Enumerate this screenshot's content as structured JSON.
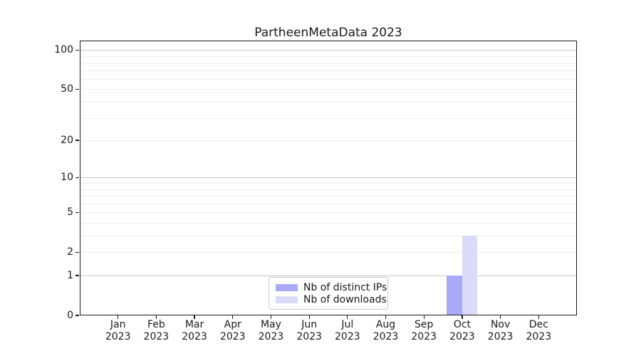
{
  "title": "PartheenMetaData 2023",
  "chart_data": {
    "type": "bar",
    "title": "PartheenMetaData 2023",
    "categories": [
      "Jan",
      "Feb",
      "Mar",
      "Apr",
      "May",
      "Jun",
      "Jul",
      "Aug",
      "Sep",
      "Oct",
      "Nov",
      "Dec"
    ],
    "category_sublabel": "2023",
    "series": [
      {
        "name": "Nb of distinct IPs",
        "color": "#a9a9f6",
        "values": [
          0,
          0,
          0,
          0,
          0,
          0,
          0,
          0,
          0,
          1,
          0,
          0
        ]
      },
      {
        "name": "Nb of downloads",
        "color": "#dbdbf9",
        "values": [
          0,
          0,
          0,
          0,
          0,
          0,
          0,
          0,
          0,
          3,
          0,
          0
        ]
      }
    ],
    "y_scale": "log1p",
    "ylim": [
      0,
      118
    ],
    "y_tick_values": [
      0,
      1,
      2,
      5,
      10,
      20,
      50,
      100
    ],
    "y_tick_labels": [
      "0",
      "1",
      "2",
      "5",
      "10",
      "20",
      "50",
      "100"
    ],
    "y_major_gridlines": [
      1,
      10,
      100
    ],
    "y_minor_gridlines": [
      2,
      3,
      4,
      5,
      6,
      7,
      8,
      9,
      20,
      30,
      40,
      50,
      60,
      70,
      80,
      90
    ],
    "grid": true,
    "legend_position": "lower center",
    "colors": {
      "major_grid": "#c8c8c8",
      "minor_grid": "#ededed",
      "spine": "#1a1a1a",
      "text": "#1a1a1a",
      "background": "#ffffff"
    }
  }
}
